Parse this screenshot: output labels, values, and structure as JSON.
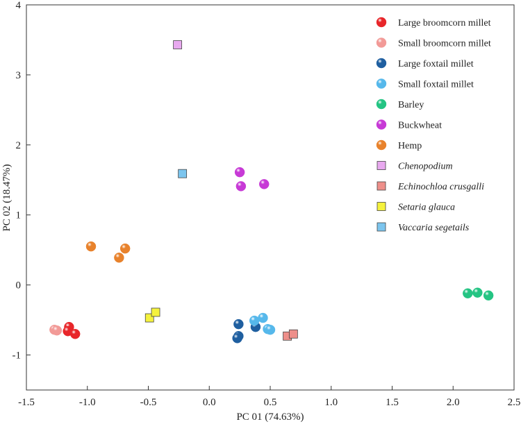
{
  "chart_data": {
    "type": "scatter",
    "title": "",
    "xlabel": "PC 01 (74.63%)",
    "ylabel": "PC 02 (18.47%)",
    "xlim": [
      -1.5,
      2.5
    ],
    "ylim": [
      -1.5,
      4
    ],
    "xticks": [
      -1.5,
      -1.0,
      -0.5,
      0.0,
      0.5,
      1.0,
      1.5,
      2.0,
      2.5
    ],
    "xtick_labels": [
      "-1.5",
      "-1.0",
      "-0.5",
      "0.0",
      "0.5",
      "1.0",
      "1.5",
      "2.0",
      "2.5"
    ],
    "yticks": [
      -1,
      0,
      1,
      2,
      3,
      4
    ],
    "ytick_labels": [
      "-1",
      "0",
      "1",
      "2",
      "3",
      "4"
    ],
    "grid": false,
    "legend_position": "top-right",
    "series": [
      {
        "name": "Large broomcorn millet",
        "marker": "circle",
        "italic": false,
        "color": "#e8262a",
        "points": [
          [
            -1.15,
            -0.6
          ],
          [
            -1.16,
            -0.66
          ],
          [
            -1.1,
            -0.7
          ]
        ]
      },
      {
        "name": "Small broomcorn millet",
        "marker": "circle",
        "italic": false,
        "color": "#f29a97",
        "points": [
          [
            -1.27,
            -0.64
          ],
          [
            -1.25,
            -0.65
          ]
        ]
      },
      {
        "name": "Large foxtail millet",
        "marker": "circle",
        "italic": false,
        "color": "#1f5fa0",
        "points": [
          [
            0.24,
            -0.56
          ],
          [
            0.24,
            -0.73
          ],
          [
            0.23,
            -0.76
          ],
          [
            0.38,
            -0.6
          ]
        ]
      },
      {
        "name": "Small foxtail millet",
        "marker": "circle",
        "italic": false,
        "color": "#56b8eb",
        "points": [
          [
            0.37,
            -0.51
          ],
          [
            0.44,
            -0.47
          ],
          [
            0.48,
            -0.63
          ],
          [
            0.5,
            -0.64
          ]
        ]
      },
      {
        "name": "Barley",
        "marker": "circle",
        "italic": false,
        "color": "#24c483",
        "points": [
          [
            2.12,
            -0.12
          ],
          [
            2.2,
            -0.11
          ],
          [
            2.29,
            -0.15
          ]
        ]
      },
      {
        "name": "Buckwheat",
        "marker": "circle",
        "italic": false,
        "color": "#c73ad6",
        "points": [
          [
            0.25,
            1.61
          ],
          [
            0.26,
            1.41
          ],
          [
            0.45,
            1.44
          ]
        ]
      },
      {
        "name": "Hemp",
        "marker": "circle",
        "italic": false,
        "color": "#e8822c",
        "points": [
          [
            -0.97,
            0.55
          ],
          [
            -0.74,
            0.39
          ],
          [
            -0.69,
            0.52
          ]
        ]
      },
      {
        "name": "Chenopodium",
        "marker": "square",
        "italic": true,
        "color": "#e8a9ef",
        "points": [
          [
            -0.26,
            3.43
          ]
        ]
      },
      {
        "name": "Echinochloa crusgalli",
        "marker": "square",
        "italic": true,
        "color": "#ee8f8a",
        "points": [
          [
            0.64,
            -0.73
          ],
          [
            0.69,
            -0.7
          ]
        ]
      },
      {
        "name": "Setaria glauca",
        "marker": "square",
        "italic": true,
        "color": "#f5f23d",
        "points": [
          [
            -0.49,
            -0.47
          ],
          [
            -0.44,
            -0.39
          ]
        ]
      },
      {
        "name": "Vaccaria segetails",
        "marker": "square",
        "italic": true,
        "color": "#7cc5ee",
        "points": [
          [
            -0.22,
            1.59
          ]
        ]
      }
    ]
  }
}
